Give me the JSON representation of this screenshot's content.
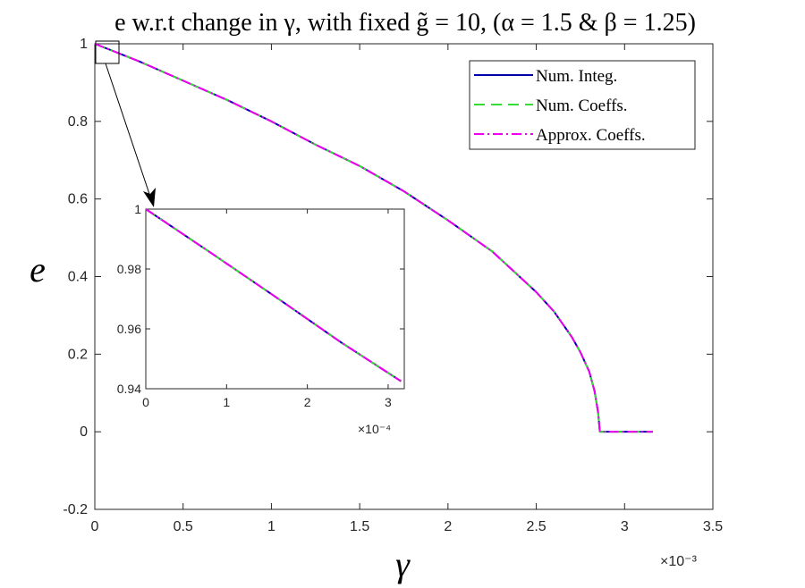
{
  "chart_data": [
    {
      "type": "line",
      "title": "e w.r.t change in γ, with fixed g̃ = 10, (α = 1.5 & β = 1.25)",
      "xlabel": "γ",
      "ylabel": "e",
      "x_multiplier_label": "×10⁻³",
      "xlim": [
        0,
        3.5
      ],
      "ylim": [
        -0.2,
        1
      ],
      "xticks": [
        "0",
        "0.5",
        "1",
        "1.5",
        "2",
        "2.5",
        "3",
        "3.5"
      ],
      "yticks": [
        "-0.2",
        "0",
        "0.2",
        "0.4",
        "0.6",
        "0.8",
        "1"
      ],
      "legend_position": "top-right",
      "series": [
        {
          "name": "Num. Integ.",
          "color": "#0000aa",
          "dash": "solid"
        },
        {
          "name": "Num. Coeffs.",
          "color": "#33dd33",
          "dash": "dashed"
        },
        {
          "name": "Approx. Coeffs.",
          "color": "#ee00ee",
          "dash": "dashdot"
        }
      ],
      "x": [
        0,
        0.25,
        0.5,
        0.75,
        1.0,
        1.25,
        1.5,
        1.75,
        2.0,
        2.25,
        2.5,
        2.6,
        2.7,
        2.75,
        2.8,
        2.83,
        2.85,
        2.86,
        3.0,
        3.16
      ],
      "values": [
        1,
        0.955,
        0.905,
        0.855,
        0.8,
        0.74,
        0.685,
        0.62,
        0.545,
        0.465,
        0.36,
        0.31,
        0.245,
        0.205,
        0.155,
        0.105,
        0.05,
        0,
        0,
        0
      ]
    },
    {
      "type": "line",
      "role": "inset",
      "x_multiplier_label": "×10⁻⁴",
      "xlim": [
        0,
        3.2
      ],
      "ylim": [
        0.94,
        1
      ],
      "xticks": [
        "0",
        "1",
        "2",
        "3"
      ],
      "yticks": [
        "0.94",
        "0.96",
        "0.98",
        "1"
      ],
      "x": [
        0,
        0.8,
        1.6,
        2.4,
        3.16
      ],
      "values": [
        1,
        0.9855,
        0.9708,
        0.9558,
        0.9425
      ]
    }
  ]
}
